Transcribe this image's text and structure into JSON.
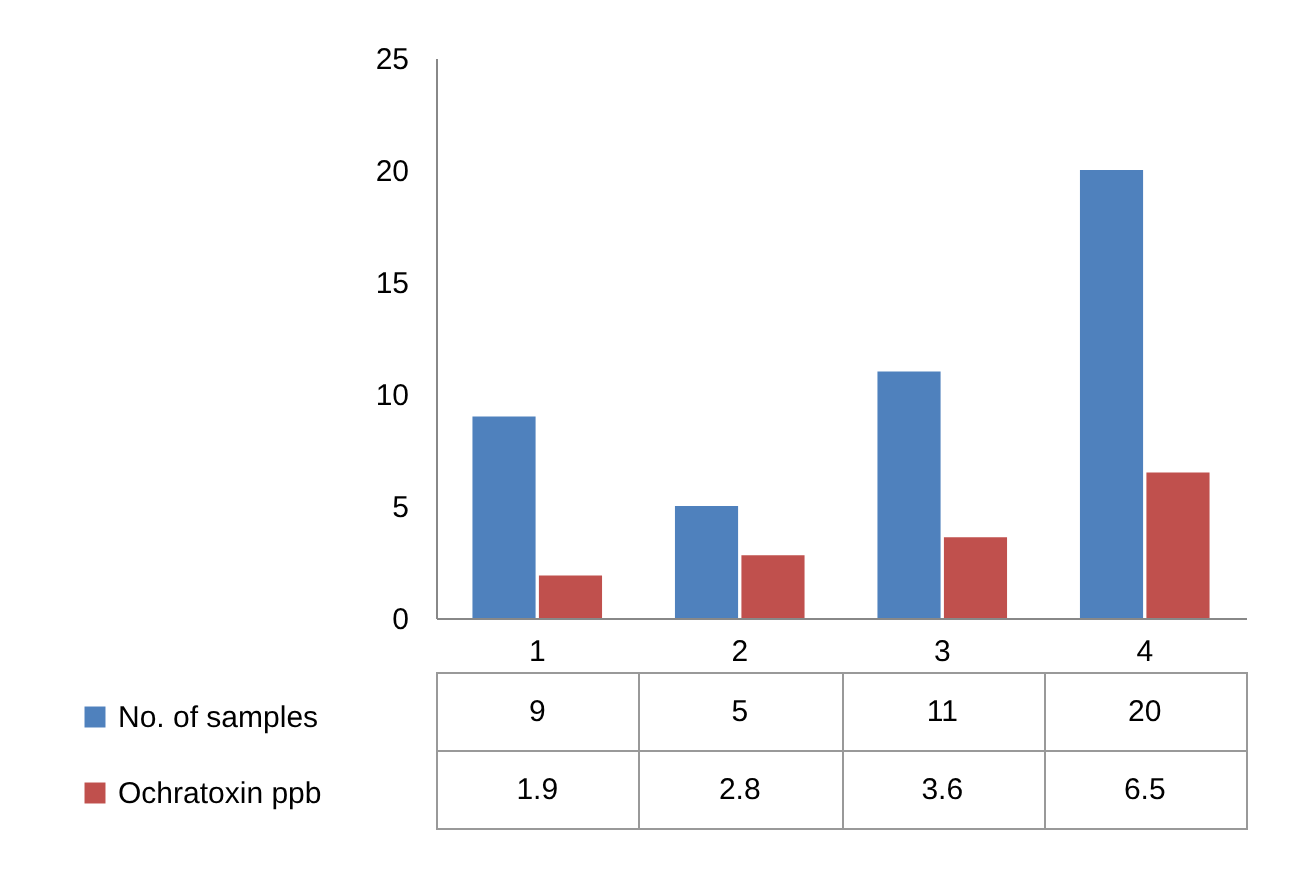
{
  "chart_data": {
    "type": "bar",
    "categories": [
      "1",
      "2",
      "3",
      "4"
    ],
    "series": [
      {
        "name": "No. of samples",
        "color": "#4f81bd",
        "values": [
          9,
          5,
          11,
          20
        ]
      },
      {
        "name": "Ochratoxin ppb",
        "color": "#c0504d",
        "values": [
          1.9,
          2.8,
          3.6,
          6.5
        ]
      }
    ],
    "ylim": [
      0,
      25
    ],
    "yticks": [
      0,
      5,
      10,
      15,
      20,
      25
    ],
    "legend": "bottom left",
    "data_labels": true
  }
}
